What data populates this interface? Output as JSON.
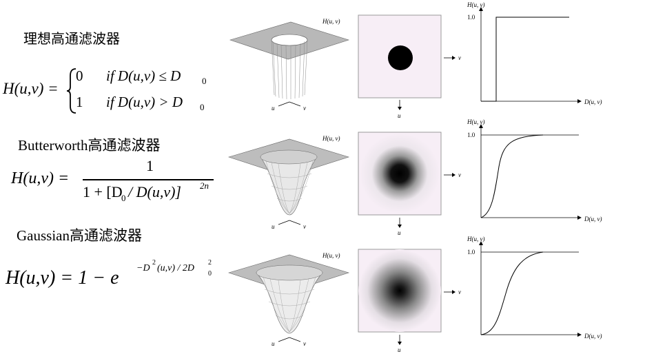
{
  "filters": [
    {
      "title": "理想高通滤波器",
      "formula": {
        "lhs": "H(u,v) =",
        "case1_value": "0",
        "case1_cond": "if D(u,v) ≤ D",
        "case1_sub": "0",
        "case2_value": "1",
        "case2_cond": "if D(u,v) > D",
        "case2_sub": "0"
      }
    },
    {
      "title": "Butterworth高通滤波器",
      "formula": {
        "lhs": "H(u,v) =",
        "numerator": "1",
        "denominator_pre": "1 + [D",
        "denominator_sub": "0",
        "denominator_mid": " / D(u,v)]",
        "denominator_sup": "2n"
      }
    },
    {
      "title": "Gaussian高通滤波器",
      "formula": {
        "lhs": "H(u,v) = 1 − e",
        "exponent_pre": "−D",
        "exponent_sup": "2",
        "exponent_mid": "(u,v) / 2D",
        "exponent_sub": "0",
        "exponent_sup2": "2"
      }
    }
  ],
  "axis_labels": {
    "surface_huv": "H(u, v)",
    "surface_u": "u",
    "surface_v": "v",
    "image_v": "v",
    "image_u": "u",
    "plot_y": "H(u, v)",
    "plot_x": "D(u, v)",
    "plot_tick": "1.0"
  },
  "chart_data": [
    {
      "type": "line",
      "title": "",
      "xlabel": "D(u, v)",
      "ylabel": "H(u, v)",
      "ylim": [
        0,
        1.0
      ],
      "yticks": [
        "1.0"
      ],
      "shape": "ideal-step"
    },
    {
      "type": "line",
      "title": "",
      "xlabel": "D(u, v)",
      "ylabel": "H(u, v)",
      "ylim": [
        0,
        1.0
      ],
      "yticks": [
        "1.0"
      ],
      "shape": "butterworth"
    },
    {
      "type": "line",
      "title": "",
      "xlabel": "D(u, v)",
      "ylabel": "H(u, v)",
      "ylim": [
        0,
        1.0
      ],
      "yticks": [
        "1.0"
      ],
      "shape": "gaussian"
    }
  ]
}
